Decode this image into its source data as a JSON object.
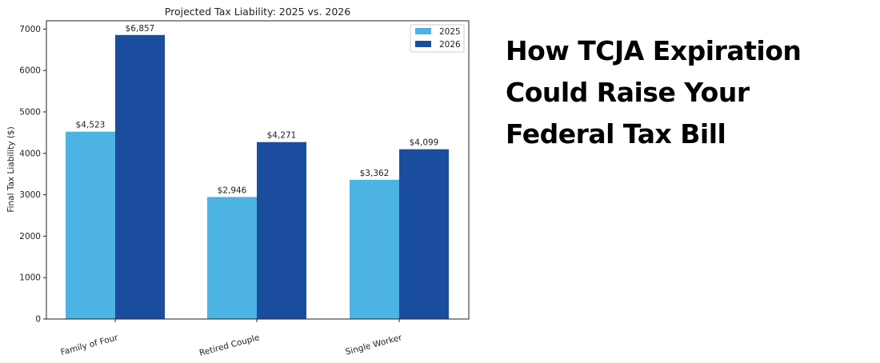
{
  "headline": {
    "lines": [
      "How TCJA Expiration",
      "Could Raise Your",
      "Federal Tax Bill"
    ]
  },
  "colors": {
    "series_2025": "#4db3e3",
    "series_2026": "#1a4d9e"
  },
  "chart_data": {
    "type": "bar",
    "title": "Projected Tax Liability: 2025 vs. 2026",
    "xlabel": "",
    "ylabel": "Final Tax Liability ($)",
    "categories": [
      "Family of Four",
      "Retired Couple",
      "Single Worker"
    ],
    "series": [
      {
        "name": "2025",
        "values": [
          4523,
          2946,
          3362
        ],
        "labels": [
          "$4,523",
          "$2,946",
          "$3,362"
        ],
        "color": "#4db3e3"
      },
      {
        "name": "2026",
        "values": [
          6857,
          4271,
          4099
        ],
        "labels": [
          "$6,857",
          "$4,271",
          "$4,099"
        ],
        "color": "#1a4d9e"
      }
    ],
    "ylim": [
      0,
      7200
    ],
    "yticks": [
      0,
      1000,
      2000,
      3000,
      4000,
      5000,
      6000,
      7000
    ],
    "grid": false,
    "legend": "top-right",
    "xtick_rotation": "rotated"
  }
}
